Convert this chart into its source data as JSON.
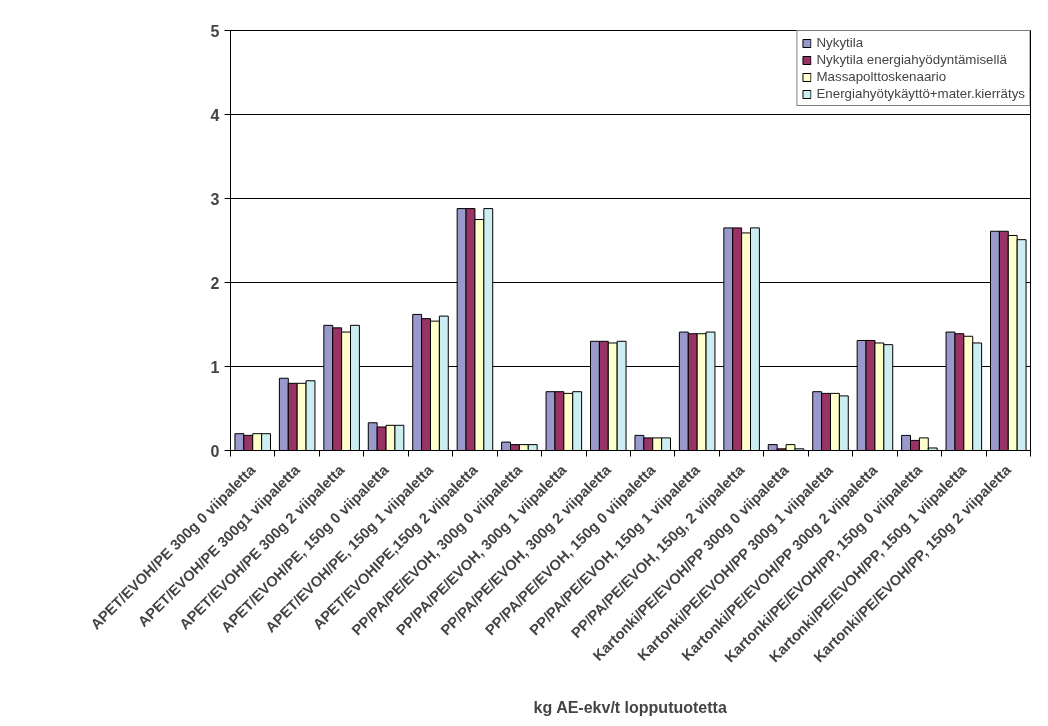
{
  "chart_data": {
    "type": "bar",
    "xlabel": "kg AE-ekv/t lopputuotetta",
    "categories": [
      "APET/EVOH/PE 300g 0 viipaletta",
      "APET/EVOH/PE 300g1 viipaletta",
      "APET/EVOH/PE 300g 2 viipaletta",
      "APET/EVOH/PE, 150g 0 viipaletta",
      "APET/EVOH/PE, 150g 1 viipaletta",
      "APET/EVOHIPE,150g 2 viipaletta",
      "PP/PA/PE/EVOH, 300g 0 viipaletta",
      "PP/PA/PE/EVOH, 300g 1 viipaletta",
      "PP/PA/PE/EVOH, 300g 2 viipaletta",
      "PP/PA/PE/EVOH, 150g 0 viipaletta",
      "PP/PA/PE/EVOH, 150g 1 viipaletta",
      "PP/PA/PE/EVOH, 150g, 2 viipaletta",
      "Kartonki/PE/EVOH/PP 300g 0 viipaletta",
      "Kartonki/PE/EVOH/PP 300g 1 viipaletta",
      "Kartonki/PE/EVOH/PP 300g 2 viipaletta",
      "Kartonki/PE/EVOH/PP, 150g 0 viipaletta",
      "Kartonki/PE/EVOH/PP, 150g 1 viipaletta",
      "Kartonki/PE/EVOH/PP, 150g 2 viipaletta"
    ],
    "series": [
      {
        "name": "Nykytila",
        "color": "#9999cc",
        "values": [
          0.2,
          0.86,
          1.49,
          0.33,
          1.62,
          2.88,
          0.1,
          0.7,
          1.3,
          0.18,
          1.41,
          2.65,
          0.07,
          0.7,
          1.31,
          0.18,
          1.41,
          2.61
        ]
      },
      {
        "name": "Nykytila energiahyödyntämisellä",
        "color": "#993366",
        "values": [
          0.18,
          0.8,
          1.46,
          0.28,
          1.57,
          2.88,
          0.07,
          0.7,
          1.3,
          0.15,
          1.39,
          2.65,
          0.02,
          0.68,
          1.31,
          0.12,
          1.39,
          2.61
        ]
      },
      {
        "name": "Massapolttoskenaario",
        "color": "#ffffcc",
        "values": [
          0.2,
          0.8,
          1.41,
          0.3,
          1.54,
          2.75,
          0.07,
          0.68,
          1.28,
          0.15,
          1.39,
          2.59,
          0.07,
          0.68,
          1.28,
          0.15,
          1.36,
          2.56
        ]
      },
      {
        "name": "Energiahyötykäyttö+mater.kierrätys",
        "color": "#cceef0",
        "values": [
          0.2,
          0.83,
          1.49,
          0.3,
          1.6,
          2.88,
          0.07,
          0.7,
          1.3,
          0.15,
          1.41,
          2.65,
          0.02,
          0.65,
          1.26,
          0.03,
          1.28,
          2.51
        ]
      }
    ],
    "ylim": [
      0,
      5
    ],
    "yticks": [
      0,
      1,
      2,
      3,
      4,
      5
    ],
    "grid": "y",
    "legend": "top right"
  }
}
